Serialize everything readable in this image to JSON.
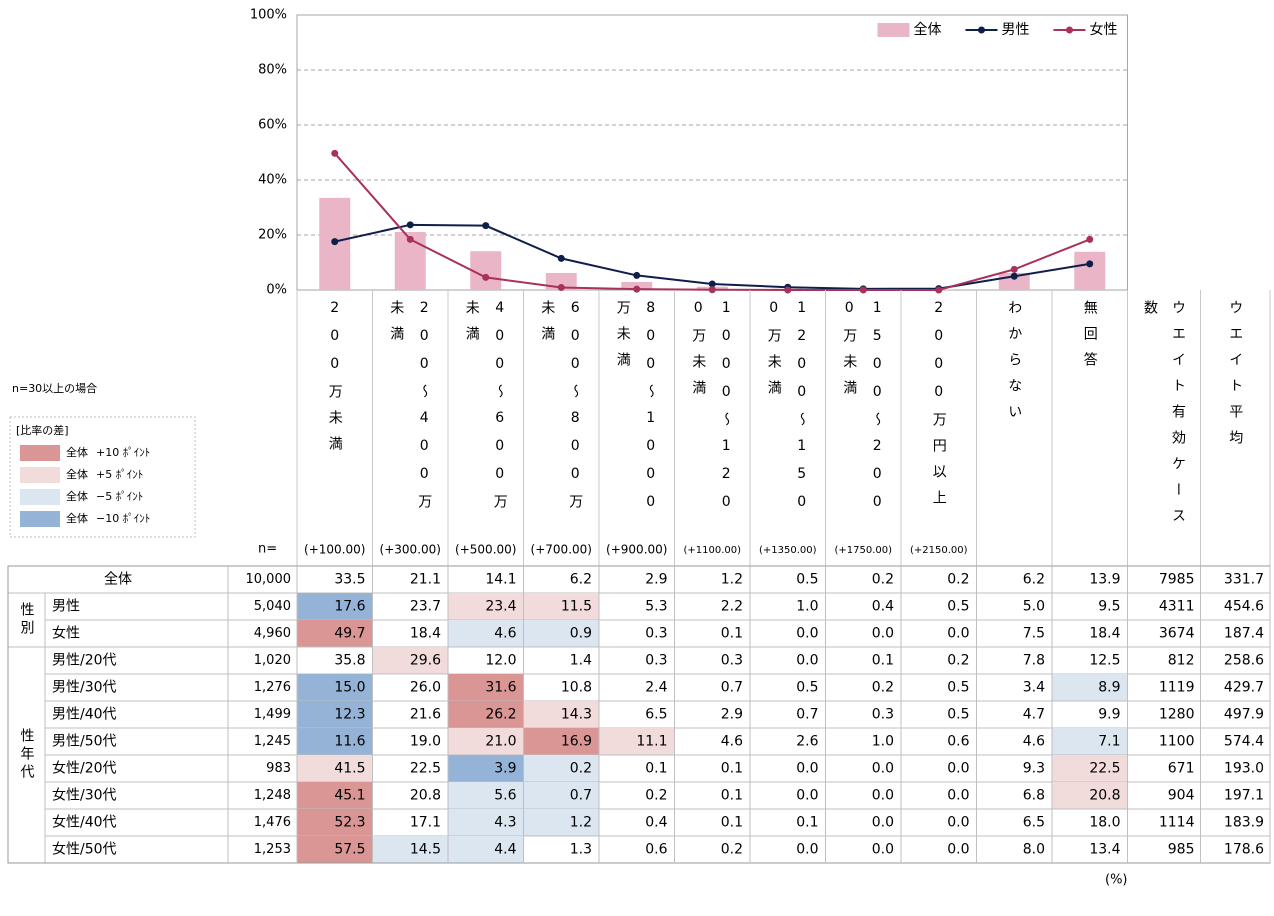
{
  "chart_data": {
    "type": "combo",
    "categories": [
      "200万未満",
      "200～400万未満",
      "400～600万未満",
      "600～800万未満",
      "800～1000万未満",
      "1000～1200万未満",
      "1200～1500万未満",
      "1500～2000万未満",
      "2000万円以上",
      "わからない",
      "無回答"
    ],
    "series": [
      {
        "name": "全体",
        "kind": "bar",
        "color": "#ebb5c8",
        "values": [
          33.5,
          21.1,
          14.1,
          6.2,
          2.9,
          1.2,
          0.5,
          0.2,
          0.2,
          6.2,
          13.9
        ]
      },
      {
        "name": "男性",
        "kind": "line",
        "color": "#0f1f4b",
        "values": [
          17.6,
          23.7,
          23.4,
          11.5,
          5.3,
          2.2,
          1.0,
          0.4,
          0.5,
          5.0,
          9.5
        ]
      },
      {
        "name": "女性",
        "kind": "line",
        "color": "#a8325e",
        "values": [
          49.7,
          18.4,
          4.6,
          0.9,
          0.3,
          0.1,
          0.0,
          0.0,
          0.0,
          7.5,
          18.4
        ]
      }
    ],
    "ylim": [
      0,
      100
    ],
    "yticks": [
      {
        "value": 0,
        "label": "0%"
      },
      {
        "value": 20,
        "label": "20%"
      },
      {
        "value": 40,
        "label": "40%"
      },
      {
        "value": 60,
        "label": "60%"
      },
      {
        "value": 80,
        "label": "80%"
      },
      {
        "value": 100,
        "label": "100%"
      }
    ],
    "grid": true,
    "legend": "top-right"
  },
  "midpoints": [
    "(+100.00)",
    "(+300.00)",
    "(+500.00)",
    "(+700.00)",
    "(+900.00)",
    "(+1100.00)",
    "(+1350.00)",
    "(+1750.00)",
    "(+2150.00)"
  ],
  "extra_columns": [
    "ウエイト有効ケース数",
    "ウエイト平均"
  ],
  "n_label": "n=",
  "note": "n=30以上の場合",
  "diff_legend": {
    "title": "[比率の差]",
    "items": [
      {
        "label": "全体",
        "text": "+10 ﾎﾟｲﾝﾄ",
        "value": 10,
        "color": "#da9694"
      },
      {
        "label": "全体",
        "text": "+5 ﾎﾟｲﾝﾄ",
        "value": 5,
        "color": "#f2dcdb"
      },
      {
        "label": "全体",
        "text": "−5 ﾎﾟｲﾝﾄ",
        "value": -5,
        "color": "#dce6f1"
      },
      {
        "label": "全体",
        "text": "−10 ﾎﾟｲﾝﾄ",
        "value": -10,
        "color": "#95b3d7"
      }
    ]
  },
  "table": {
    "sections": [
      {
        "rows": [
          {
            "label": "全体",
            "n": "10,000",
            "values": [
              "33.5",
              "21.1",
              "14.1",
              "6.2",
              "2.9",
              "1.2",
              "0.5",
              "0.2",
              "0.2",
              "6.2",
              "13.9"
            ],
            "extra": [
              "7985",
              "331.7"
            ]
          }
        ]
      },
      {
        "label": "性別",
        "rows": [
          {
            "label": "男性",
            "n": "5,040",
            "values": [
              "17.6",
              "23.7",
              "23.4",
              "11.5",
              "5.3",
              "2.2",
              "1.0",
              "0.4",
              "0.5",
              "5.0",
              "9.5"
            ],
            "extra": [
              "4311",
              "454.6"
            ]
          },
          {
            "label": "女性",
            "n": "4,960",
            "values": [
              "49.7",
              "18.4",
              "4.6",
              "0.9",
              "0.3",
              "0.1",
              "0.0",
              "0.0",
              "0.0",
              "7.5",
              "18.4"
            ],
            "extra": [
              "3674",
              "187.4"
            ]
          }
        ]
      },
      {
        "label": "性年代",
        "rows": [
          {
            "label": "男性/20代",
            "n": "1,020",
            "values": [
              "35.8",
              "29.6",
              "12.0",
              "1.4",
              "0.3",
              "0.3",
              "0.0",
              "0.1",
              "0.2",
              "7.8",
              "12.5"
            ],
            "extra": [
              "812",
              "258.6"
            ]
          },
          {
            "label": "男性/30代",
            "n": "1,276",
            "values": [
              "15.0",
              "26.0",
              "31.6",
              "10.8",
              "2.4",
              "0.7",
              "0.5",
              "0.2",
              "0.5",
              "3.4",
              "8.9"
            ],
            "extra": [
              "1119",
              "429.7"
            ]
          },
          {
            "label": "男性/40代",
            "n": "1,499",
            "values": [
              "12.3",
              "21.6",
              "26.2",
              "14.3",
              "6.5",
              "2.9",
              "0.7",
              "0.3",
              "0.5",
              "4.7",
              "9.9"
            ],
            "extra": [
              "1280",
              "497.9"
            ]
          },
          {
            "label": "男性/50代",
            "n": "1,245",
            "values": [
              "11.6",
              "19.0",
              "21.0",
              "16.9",
              "11.1",
              "4.6",
              "2.6",
              "1.0",
              "0.6",
              "4.6",
              "7.1"
            ],
            "extra": [
              "1100",
              "574.4"
            ]
          },
          {
            "label": "女性/20代",
            "n": "983",
            "values": [
              "41.5",
              "22.5",
              "3.9",
              "0.2",
              "0.1",
              "0.1",
              "0.0",
              "0.0",
              "0.0",
              "9.3",
              "22.5"
            ],
            "extra": [
              "671",
              "193.0"
            ]
          },
          {
            "label": "女性/30代",
            "n": "1,248",
            "values": [
              "45.1",
              "20.8",
              "5.6",
              "0.7",
              "0.2",
              "0.1",
              "0.0",
              "0.0",
              "0.0",
              "6.8",
              "20.8"
            ],
            "extra": [
              "904",
              "197.1"
            ]
          },
          {
            "label": "女性/40代",
            "n": "1,476",
            "values": [
              "52.3",
              "17.1",
              "4.3",
              "1.2",
              "0.4",
              "0.1",
              "0.1",
              "0.0",
              "0.0",
              "6.5",
              "18.0"
            ],
            "extra": [
              "1114",
              "183.9"
            ]
          },
          {
            "label": "女性/50代",
            "n": "1,253",
            "values": [
              "57.5",
              "14.5",
              "4.4",
              "1.3",
              "0.6",
              "0.2",
              "0.0",
              "0.0",
              "0.0",
              "8.0",
              "13.4"
            ],
            "extra": [
              "985",
              "178.6"
            ]
          }
        ]
      }
    ]
  },
  "unit": "(%)"
}
